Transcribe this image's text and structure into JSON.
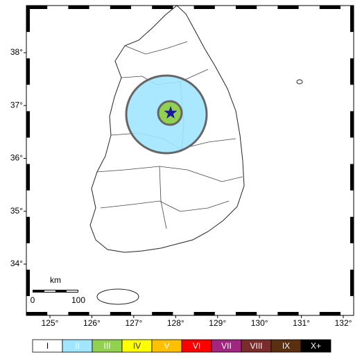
{
  "map": {
    "lon_ticks": [
      {
        "value": 125,
        "label": "125°"
      },
      {
        "value": 126,
        "label": "126°"
      },
      {
        "value": 127,
        "label": "127°"
      },
      {
        "value": 128,
        "label": "128°"
      },
      {
        "value": 129,
        "label": "129°"
      },
      {
        "value": 130,
        "label": "130°"
      },
      {
        "value": 131,
        "label": "131°"
      },
      {
        "value": 132,
        "label": "132°"
      }
    ],
    "lat_ticks": [
      {
        "value": 34,
        "label": "34°"
      },
      {
        "value": 35,
        "label": "35°"
      },
      {
        "value": 36,
        "label": "36°"
      },
      {
        "value": 37,
        "label": "37°"
      },
      {
        "value": 38,
        "label": "38°"
      }
    ],
    "epicenter": {
      "lon": 127.88,
      "lat": 36.86,
      "color": "#1a1aa0"
    },
    "scale_bar": {
      "unit": "km",
      "start": "0",
      "end": "100"
    },
    "legend": [
      {
        "label": "I",
        "color": "#ffffff",
        "text_color": "#000000"
      },
      {
        "label": "II",
        "color": "#a0e6ff",
        "text_color": "#ffffff"
      },
      {
        "label": "III",
        "color": "#92d050",
        "text_color": "#ffffff"
      },
      {
        "label": "IV",
        "color": "#ffff00",
        "text_color": "#333333"
      },
      {
        "label": "V",
        "color": "#ffc000",
        "text_color": "#ffffff"
      },
      {
        "label": "VI",
        "color": "#ff0000",
        "text_color": "#ffffff"
      },
      {
        "label": "VII",
        "color": "#a0267f",
        "text_color": "#ffffff"
      },
      {
        "label": "VIII",
        "color": "#7a2b2b",
        "text_color": "#ffffff"
      },
      {
        "label": "IX",
        "color": "#5a3010",
        "text_color": "#ffffff"
      },
      {
        "label": "X+",
        "color": "#000000",
        "text_color": "#ffffff"
      }
    ]
  }
}
